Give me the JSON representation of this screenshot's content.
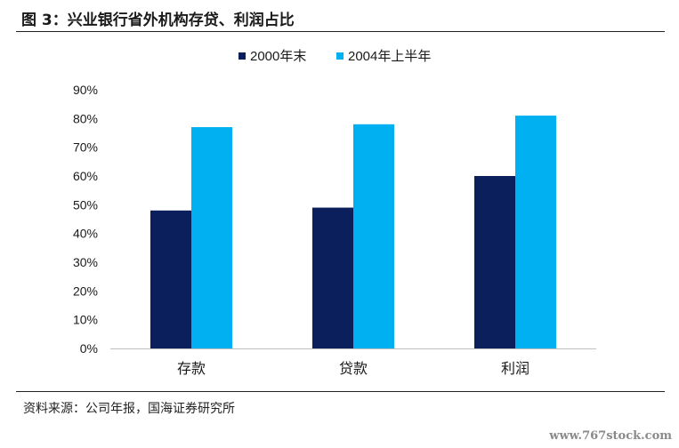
{
  "figure": {
    "title": "图 3：兴业银行省外机构存贷、利润占比",
    "source": "资料来源：公司年报，国海证券研究所",
    "watermark": "www.767stock.com"
  },
  "chart_data": {
    "type": "bar",
    "title": "",
    "xlabel": "",
    "ylabel": "",
    "categories": [
      "存款",
      "贷款",
      "利润"
    ],
    "series": [
      {
        "name": "2000年末",
        "color": "#0b1f5c",
        "values": [
          0.48,
          0.49,
          0.6
        ]
      },
      {
        "name": "2004年上半年",
        "color": "#00b0f0",
        "values": [
          0.77,
          0.78,
          0.81
        ]
      }
    ],
    "ylim": [
      0,
      0.9
    ],
    "yticks": [
      "0%",
      "10%",
      "20%",
      "30%",
      "40%",
      "50%",
      "60%",
      "70%",
      "80%",
      "90%"
    ],
    "legend_position": "top-center",
    "grid": false
  }
}
